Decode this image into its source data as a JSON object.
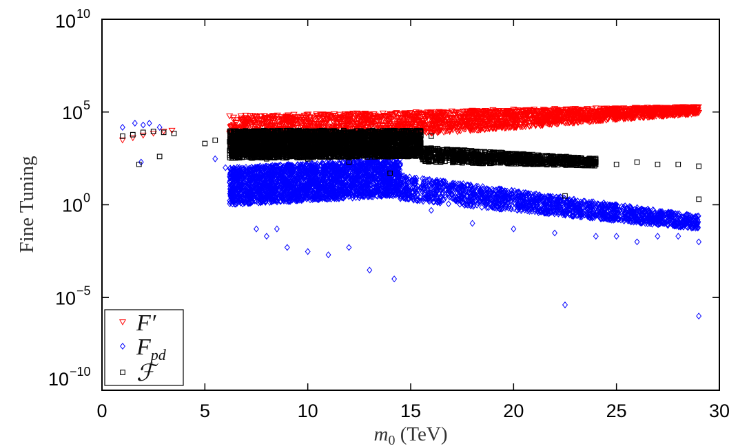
{
  "chart_data": {
    "type": "scatter",
    "xlabel": "m0 (TeV)",
    "ylabel": "Fine Tuning",
    "xlim": [
      0,
      30
    ],
    "ylim_log10": [
      -10,
      10
    ],
    "y_scale": "log",
    "x_ticks": [
      "0",
      "5",
      "10",
      "15",
      "20",
      "25",
      "30"
    ],
    "y_ticks": [
      {
        "base": "10",
        "exp": "10"
      },
      {
        "base": "10",
        "exp": "5"
      },
      {
        "base": "10",
        "exp": "0"
      },
      {
        "base": "10",
        "exp": "−5"
      },
      {
        "base": "10",
        "exp": "−10"
      }
    ],
    "legend_position": "bottom-left",
    "series": [
      {
        "name": "F′",
        "marker": "triangle-down",
        "color": "#ff0000",
        "points": [
          [
            1.0,
            3000
          ],
          [
            1.5,
            4000
          ],
          [
            2.0,
            5500
          ],
          [
            2.5,
            7000
          ],
          [
            3.0,
            9000
          ],
          [
            3.4,
            10000
          ],
          [
            6.2,
            60000
          ],
          [
            6.5,
            25000
          ],
          [
            7,
            40000
          ],
          [
            8,
            50000
          ],
          [
            9,
            55000
          ],
          [
            10,
            60000
          ],
          [
            11,
            60000
          ],
          [
            12,
            65000
          ],
          [
            13,
            70000
          ],
          [
            14,
            80000
          ],
          [
            15,
            90000
          ],
          [
            16,
            100000
          ],
          [
            17,
            110000
          ],
          [
            18,
            120000
          ],
          [
            19,
            130000
          ],
          [
            20,
            140000
          ],
          [
            21,
            140000
          ],
          [
            22,
            150000
          ],
          [
            23,
            150000
          ],
          [
            24,
            160000
          ],
          [
            25,
            160000
          ],
          [
            26,
            170000
          ],
          [
            27,
            170000
          ],
          [
            28,
            180000
          ],
          [
            28.9,
            180000
          ]
        ],
        "bands": [
          {
            "x_start": 6.2,
            "x_end": 29.0,
            "log_low_start": 3.0,
            "log_low_end": 4.9,
            "log_high_start": 4.8,
            "log_high_end": 5.3,
            "count": 2600
          }
        ]
      },
      {
        "name": "Fpd",
        "marker": "diamond",
        "color": "#0000ff",
        "points": [
          [
            1.0,
            15000
          ],
          [
            1.6,
            25000
          ],
          [
            2.0,
            20000
          ],
          [
            2.3,
            25000
          ],
          [
            2.8,
            15000
          ],
          [
            1.9,
            200
          ],
          [
            5.5,
            300
          ],
          [
            6.0,
            100
          ],
          [
            6.5,
            20
          ],
          [
            7.0,
            5
          ],
          [
            7.5,
            0.05
          ],
          [
            8.0,
            0.02
          ],
          [
            8.5,
            0.05
          ],
          [
            9,
            0.005
          ],
          [
            10,
            0.003
          ],
          [
            11,
            0.002
          ],
          [
            12,
            0.005
          ],
          [
            13,
            0.0003
          ],
          [
            14.2,
            0.0001
          ],
          [
            16,
            0.5
          ],
          [
            18,
            0.1
          ],
          [
            20,
            0.05
          ],
          [
            22,
            0.03
          ],
          [
            24,
            0.02
          ],
          [
            25,
            0.02
          ],
          [
            26,
            0.01
          ],
          [
            27,
            0.02
          ],
          [
            28,
            0.02
          ],
          [
            29,
            0.01
          ],
          [
            22.5,
            4e-06
          ],
          [
            29,
            1e-06
          ]
        ],
        "bands": [
          {
            "x_start": 6.2,
            "x_end": 14.5,
            "log_low_start": 0.0,
            "log_low_end": 0.5,
            "log_high_start": 2.0,
            "log_high_end": 2.5,
            "count": 2600
          },
          {
            "x_start": 14.5,
            "x_end": 29.0,
            "log_low_start": 0.3,
            "log_low_end": -1.3,
            "log_high_start": 1.6,
            "log_high_end": -0.6,
            "count": 1600
          }
        ]
      },
      {
        "name": "ℱ",
        "marker": "square",
        "color": "#000000",
        "points": [
          [
            1.0,
            5000
          ],
          [
            1.5,
            6000
          ],
          [
            2.0,
            8000
          ],
          [
            2.5,
            9000
          ],
          [
            3.0,
            8000
          ],
          [
            3.5,
            7000
          ],
          [
            1.8,
            150
          ],
          [
            2.8,
            400
          ],
          [
            5.0,
            2000
          ],
          [
            5.5,
            3000
          ],
          [
            7.0,
            500
          ],
          [
            8.0,
            300
          ],
          [
            10,
            300
          ],
          [
            12,
            200
          ],
          [
            14,
            50
          ],
          [
            16,
            5000
          ],
          [
            18,
            500
          ],
          [
            20,
            300
          ],
          [
            22,
            250
          ],
          [
            22.5,
            3
          ],
          [
            24,
            200
          ],
          [
            25,
            150
          ],
          [
            26,
            200
          ],
          [
            27,
            150
          ],
          [
            28,
            150
          ],
          [
            29,
            120
          ],
          [
            29,
            2
          ]
        ],
        "bands": [
          {
            "x_start": 6.2,
            "x_end": 15.5,
            "log_low_start": 2.5,
            "log_low_end": 2.6,
            "log_high_start": 4.0,
            "log_high_end": 4.0,
            "count": 3000
          },
          {
            "x_start": 15.5,
            "x_end": 24.0,
            "log_low_start": 2.3,
            "log_low_end": 2.1,
            "log_high_start": 3.1,
            "log_high_end": 2.5,
            "count": 900
          }
        ]
      }
    ]
  }
}
